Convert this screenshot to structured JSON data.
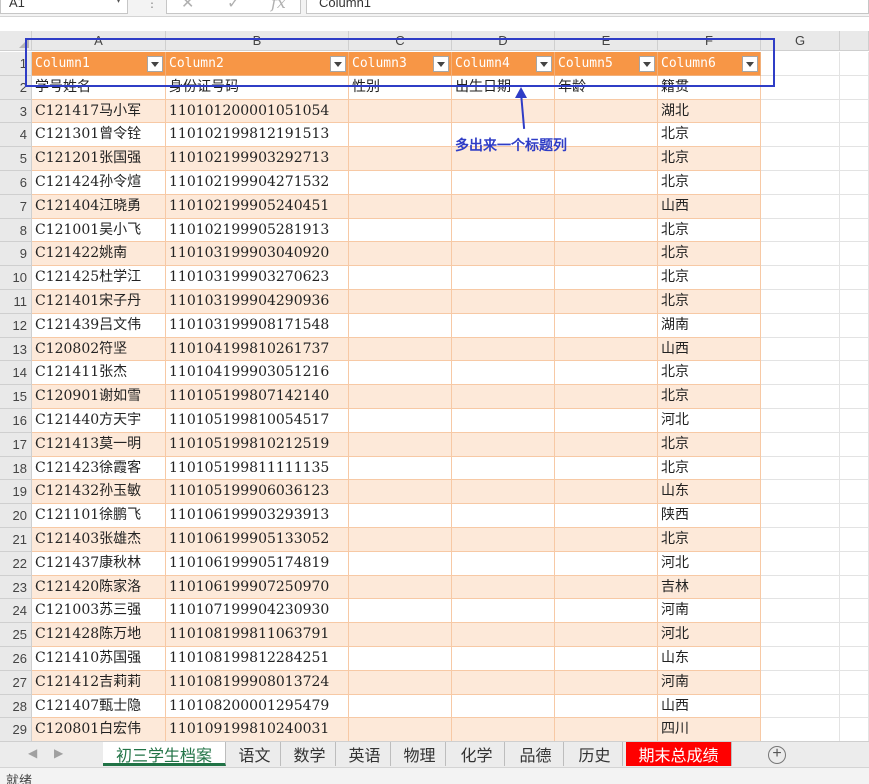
{
  "formula_bar": {
    "name_box": "A1",
    "cancel_icon": "✕",
    "enter_icon": "✓",
    "fx_icon": "fx",
    "formula": "Column1"
  },
  "columns": [
    "A",
    "B",
    "C",
    "D",
    "E",
    "F",
    "G"
  ],
  "header_row": [
    "Column1",
    "Column2",
    "Column3",
    "Column4",
    "Column5",
    "Column6"
  ],
  "rows": [
    [
      "学号姓名",
      "身份证号码",
      "性别",
      "出生日期",
      "年龄",
      "籍贯"
    ],
    [
      "C121417马小军",
      "110101200001051054",
      "",
      "",
      "",
      "湖北"
    ],
    [
      "C121301曾令铨",
      "110102199812191513",
      "",
      "",
      "",
      "北京"
    ],
    [
      "C121201张国强",
      "110102199903292713",
      "",
      "",
      "",
      "北京"
    ],
    [
      "C121424孙令煊",
      "110102199904271532",
      "",
      "",
      "",
      "北京"
    ],
    [
      "C121404江晓勇",
      "110102199905240451",
      "",
      "",
      "",
      "山西"
    ],
    [
      "C121001吴小飞",
      "110102199905281913",
      "",
      "",
      "",
      "北京"
    ],
    [
      "C121422姚南",
      "110103199903040920",
      "",
      "",
      "",
      "北京"
    ],
    [
      "C121425杜学江",
      "110103199903270623",
      "",
      "",
      "",
      "北京"
    ],
    [
      "C121401宋子丹",
      "110103199904290936",
      "",
      "",
      "",
      "北京"
    ],
    [
      "C121439吕文伟",
      "110103199908171548",
      "",
      "",
      "",
      "湖南"
    ],
    [
      "C120802符坚",
      "110104199810261737",
      "",
      "",
      "",
      "山西"
    ],
    [
      "C121411张杰",
      "110104199903051216",
      "",
      "",
      "",
      "北京"
    ],
    [
      "C120901谢如雪",
      "110105199807142140",
      "",
      "",
      "",
      "北京"
    ],
    [
      "C121440方天宇",
      "110105199810054517",
      "",
      "",
      "",
      "河北"
    ],
    [
      "C121413莫一明",
      "110105199810212519",
      "",
      "",
      "",
      "北京"
    ],
    [
      "C121423徐霞客",
      "110105199811111135",
      "",
      "",
      "",
      "北京"
    ],
    [
      "C121432孙玉敏",
      "110105199906036123",
      "",
      "",
      "",
      "山东"
    ],
    [
      "C121101徐鹏飞",
      "110106199903293913",
      "",
      "",
      "",
      "陕西"
    ],
    [
      "C121403张雄杰",
      "110106199905133052",
      "",
      "",
      "",
      "北京"
    ],
    [
      "C121437康秋林",
      "110106199905174819",
      "",
      "",
      "",
      "河北"
    ],
    [
      "C121420陈家洛",
      "110106199907250970",
      "",
      "",
      "",
      "吉林"
    ],
    [
      "C121003苏三强",
      "110107199904230930",
      "",
      "",
      "",
      "河南"
    ],
    [
      "C121428陈万地",
      "110108199811063791",
      "",
      "",
      "",
      "河北"
    ],
    [
      "C121410苏国强",
      "110108199812284251",
      "",
      "",
      "",
      "山东"
    ],
    [
      "C121412吉莉莉",
      "110108199908013724",
      "",
      "",
      "",
      "河南"
    ],
    [
      "C121407甄士隐",
      "110108200001295479",
      "",
      "",
      "",
      "山西"
    ],
    [
      "C120801白宏伟",
      "110109199810240031",
      "",
      "",
      "",
      "四川"
    ]
  ],
  "annotation": "多出来一个标题列",
  "sheet_tabs": [
    {
      "label": "初三学生档案",
      "state": "active"
    },
    {
      "label": "语文",
      "state": "normal"
    },
    {
      "label": "数学",
      "state": "normal"
    },
    {
      "label": "英语",
      "state": "normal"
    },
    {
      "label": "物理",
      "state": "normal"
    },
    {
      "label": "化学",
      "state": "normal"
    },
    {
      "label": "品德",
      "state": "normal"
    },
    {
      "label": "历史",
      "state": "normal"
    },
    {
      "label": "期末总成绩",
      "state": "red"
    }
  ],
  "add_sheet_icon": "+",
  "status": "就绪",
  "colors": {
    "header_orange": "#f79646",
    "band_light": "#fde9d9",
    "annotation_blue": "#2f3dc6",
    "active_tab": "#217346",
    "red_tab": "#ff0000"
  }
}
